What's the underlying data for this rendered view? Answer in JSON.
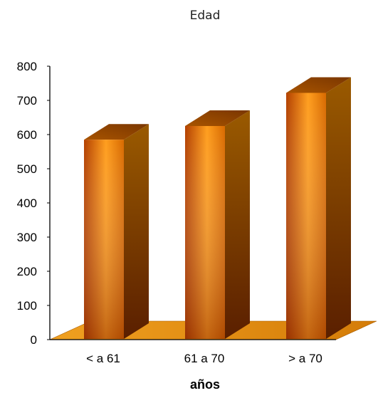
{
  "chart_data": {
    "type": "bar",
    "title": "Edad",
    "xlabel": "años",
    "ylabel": "",
    "categories": [
      "< a 61",
      "61 a 70",
      "> a 70"
    ],
    "values": [
      585,
      625,
      722
    ],
    "ylim": [
      0,
      800
    ],
    "yticks": [
      "0",
      "100",
      "200",
      "300",
      "400",
      "500",
      "600",
      "700",
      "800"
    ],
    "grid": false,
    "legend": "none",
    "style": "3d",
    "colors": {
      "bar_light": "#ff9a1a",
      "bar_dark": "#a83a00",
      "bar_top": "#8a4200",
      "bar_side": "#6a2a00",
      "floor": "#e28a10",
      "axis": "#000000"
    }
  }
}
